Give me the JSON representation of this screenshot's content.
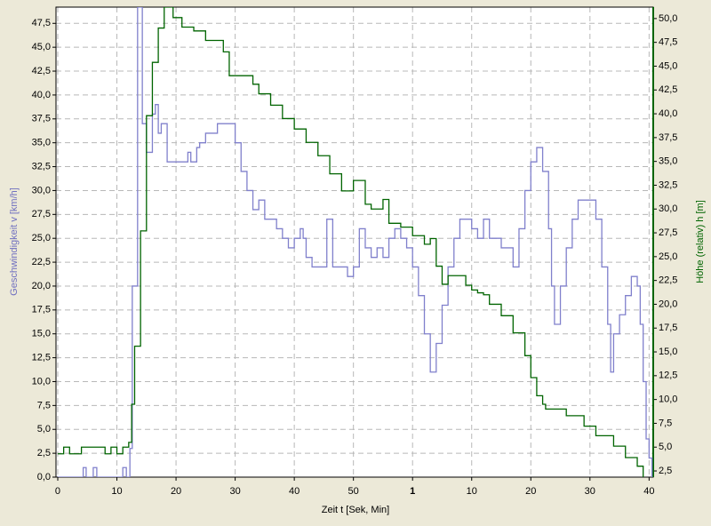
{
  "chart_data": {
    "type": "line",
    "x_label": "Zeit  t  [Sek, Min]",
    "y_label": "Geschwindigkeit  v  [km/h]",
    "y2_label": "Höhe (relativ)  h  [m]",
    "xlim": [
      -0.3,
      100.7
    ],
    "ylim": [
      0,
      49.2
    ],
    "y2lim": [
      1.85,
      51.2
    ],
    "grid": true,
    "step": true,
    "xticks": [
      0,
      10,
      20,
      30,
      40,
      50,
      {
        "value": 60,
        "label": "1"
      },
      {
        "value": 70,
        "label": "10"
      },
      {
        "value": 80,
        "label": "20"
      },
      {
        "value": 90,
        "label": "30"
      },
      {
        "value": 100,
        "label": "40"
      }
    ],
    "yticks": [
      {
        "value": 0,
        "label": "0,0"
      },
      {
        "value": 2.5,
        "label": "2,5"
      },
      {
        "value": 5,
        "label": "5,0"
      },
      {
        "value": 7.5,
        "label": "7,5"
      },
      {
        "value": 10,
        "label": "10,0"
      },
      {
        "value": 12.5,
        "label": "12,5"
      },
      {
        "value": 15,
        "label": "15,0"
      },
      {
        "value": 17.5,
        "label": "17,5"
      },
      {
        "value": 20,
        "label": "20,0"
      },
      {
        "value": 22.5,
        "label": "22,5"
      },
      {
        "value": 25,
        "label": "25,0"
      },
      {
        "value": 27.5,
        "label": "27,5"
      },
      {
        "value": 30,
        "label": "30,0"
      },
      {
        "value": 32.5,
        "label": "32,5"
      },
      {
        "value": 35,
        "label": "35,0"
      },
      {
        "value": 37.5,
        "label": "37,5"
      },
      {
        "value": 40,
        "label": "40,0"
      },
      {
        "value": 42.5,
        "label": "42,5"
      },
      {
        "value": 45,
        "label": "45,0"
      },
      {
        "value": 47.5,
        "label": "47,5"
      }
    ],
    "y2ticks": [
      {
        "value": 2.5,
        "label": "2,5"
      },
      {
        "value": 5,
        "label": "5,0"
      },
      {
        "value": 7.5,
        "label": "7,5"
      },
      {
        "value": 10,
        "label": "10,0"
      },
      {
        "value": 12.5,
        "label": "12,5"
      },
      {
        "value": 15,
        "label": "15,0"
      },
      {
        "value": 17.5,
        "label": "17,5"
      },
      {
        "value": 20,
        "label": "20,0"
      },
      {
        "value": 22.5,
        "label": "22,5"
      },
      {
        "value": 25,
        "label": "25,0"
      },
      {
        "value": 27.5,
        "label": "27,5"
      },
      {
        "value": 30,
        "label": "30,0"
      },
      {
        "value": 32.5,
        "label": "32,5"
      },
      {
        "value": 35,
        "label": "35,0"
      },
      {
        "value": 37.5,
        "label": "37,5"
      },
      {
        "value": 40,
        "label": "40,0"
      },
      {
        "value": 42.5,
        "label": "42,5"
      },
      {
        "value": 45,
        "label": "45,0"
      },
      {
        "value": 47.5,
        "label": "47,5"
      },
      {
        "value": 50,
        "label": "50,0"
      }
    ],
    "series": [
      {
        "color": "#8080cc",
        "axis": "y",
        "x": [
          0,
          4.3,
          4.8,
          6,
          6.6,
          11,
          11.6,
          12.2,
          12.6,
          13.5,
          14.3,
          15,
          16,
          16.5,
          17,
          17.5,
          18.5,
          22,
          22.5,
          23.5,
          24,
          25,
          27,
          28,
          30,
          31,
          32,
          33,
          34,
          35,
          37,
          38,
          39,
          40,
          41,
          41.5,
          42,
          43,
          45,
          45.5,
          46.5,
          49,
          50,
          51,
          52,
          53,
          54,
          55,
          56,
          57,
          58,
          59,
          60,
          61,
          62,
          63,
          64,
          65,
          66,
          67,
          68,
          70,
          71,
          72,
          73,
          75,
          77,
          78,
          79,
          80,
          81,
          82,
          83,
          83.5,
          84,
          85,
          86,
          87,
          88,
          90,
          91,
          92,
          93,
          93.5,
          94,
          95,
          96,
          97,
          98,
          98.5,
          99,
          99.5,
          100,
          100.5
        ],
        "values": [
          0,
          1,
          0,
          1,
          0,
          1,
          0,
          3,
          20,
          49.2,
          37,
          34,
          38,
          39,
          36,
          37,
          33,
          34,
          33,
          34.5,
          35,
          36,
          37,
          37,
          35,
          32,
          30,
          28,
          29,
          27,
          26,
          25,
          24,
          25,
          26,
          25,
          23,
          22,
          22,
          27,
          22,
          21,
          22,
          26,
          24,
          23,
          24,
          23,
          25,
          26,
          25,
          24,
          22,
          19,
          15,
          11,
          14,
          18,
          22,
          25,
          27,
          26,
          25,
          27,
          25,
          24,
          22,
          26,
          30,
          33,
          34.5,
          32,
          26,
          20,
          16,
          20,
          24,
          27,
          29,
          29,
          27,
          22,
          16,
          11,
          15,
          17,
          19,
          21,
          20,
          16,
          10,
          4,
          2,
          0
        ]
      },
      {
        "color": "#006400",
        "axis": "y2",
        "x": [
          0,
          1,
          2,
          4,
          8,
          9,
          10,
          11,
          12,
          12.5,
          13,
          14,
          15,
          16,
          17,
          18,
          19.5,
          21,
          23,
          25,
          28,
          29,
          33,
          34,
          36,
          38,
          40,
          42,
          44,
          46,
          48,
          50,
          52,
          53,
          55,
          56,
          58,
          60,
          62,
          63,
          64,
          65,
          66,
          69,
          70,
          71,
          72,
          73,
          75,
          77,
          79,
          80,
          81,
          82,
          82.5,
          85,
          86,
          89,
          91,
          94,
          96,
          98,
          99
        ],
        "values": [
          4.3,
          5,
          4.3,
          5,
          4.3,
          5,
          4.3,
          5,
          5.5,
          9.5,
          15.6,
          27.7,
          39.8,
          45.4,
          49,
          51.2,
          50.1,
          49.1,
          48.7,
          47.7,
          46.5,
          44,
          43.1,
          42.1,
          40.9,
          39.5,
          38.4,
          37,
          35.6,
          33.7,
          31.9,
          33,
          30.5,
          30,
          31,
          28.5,
          28.1,
          27.2,
          26.3,
          26.9,
          24,
          22.1,
          23,
          22,
          21.5,
          21.2,
          21,
          20,
          18.8,
          17,
          14.6,
          12.3,
          10.4,
          9.5,
          9,
          9,
          8.3,
          7.2,
          6.2,
          5.1,
          3.9,
          3,
          1.85
        ]
      }
    ]
  }
}
